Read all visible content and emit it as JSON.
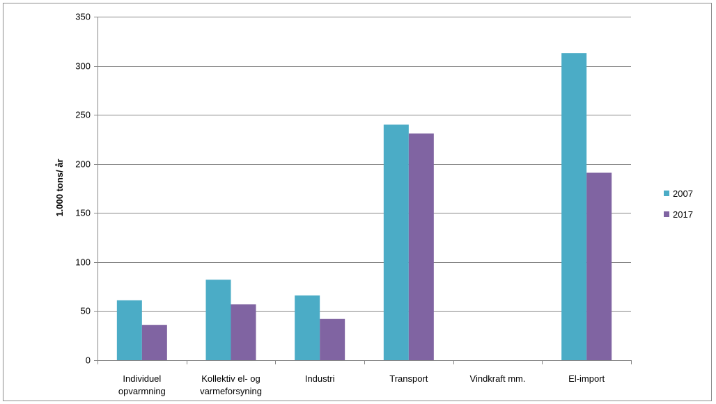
{
  "chart_data": {
    "type": "bar",
    "title": "",
    "xlabel": "",
    "ylabel": "1.000 tons/ år",
    "ylim": [
      0,
      350
    ],
    "yticks": [
      0,
      50,
      100,
      150,
      200,
      250,
      300,
      350
    ],
    "grid": true,
    "legend_position": "right",
    "categories": [
      [
        "Individuel",
        "opvarmning"
      ],
      [
        "Kollektiv el- og",
        "varmeforsyning"
      ],
      [
        "Industri"
      ],
      [
        "Transport"
      ],
      [
        "Vindkraft mm."
      ],
      [
        "El-import"
      ]
    ],
    "series": [
      {
        "name": "2007",
        "color": "#4BACC6",
        "values": [
          61,
          82,
          66,
          240,
          0,
          313
        ]
      },
      {
        "name": "2017",
        "color": "#8064A2",
        "values": [
          36,
          57,
          42,
          231,
          0,
          191
        ]
      }
    ]
  }
}
